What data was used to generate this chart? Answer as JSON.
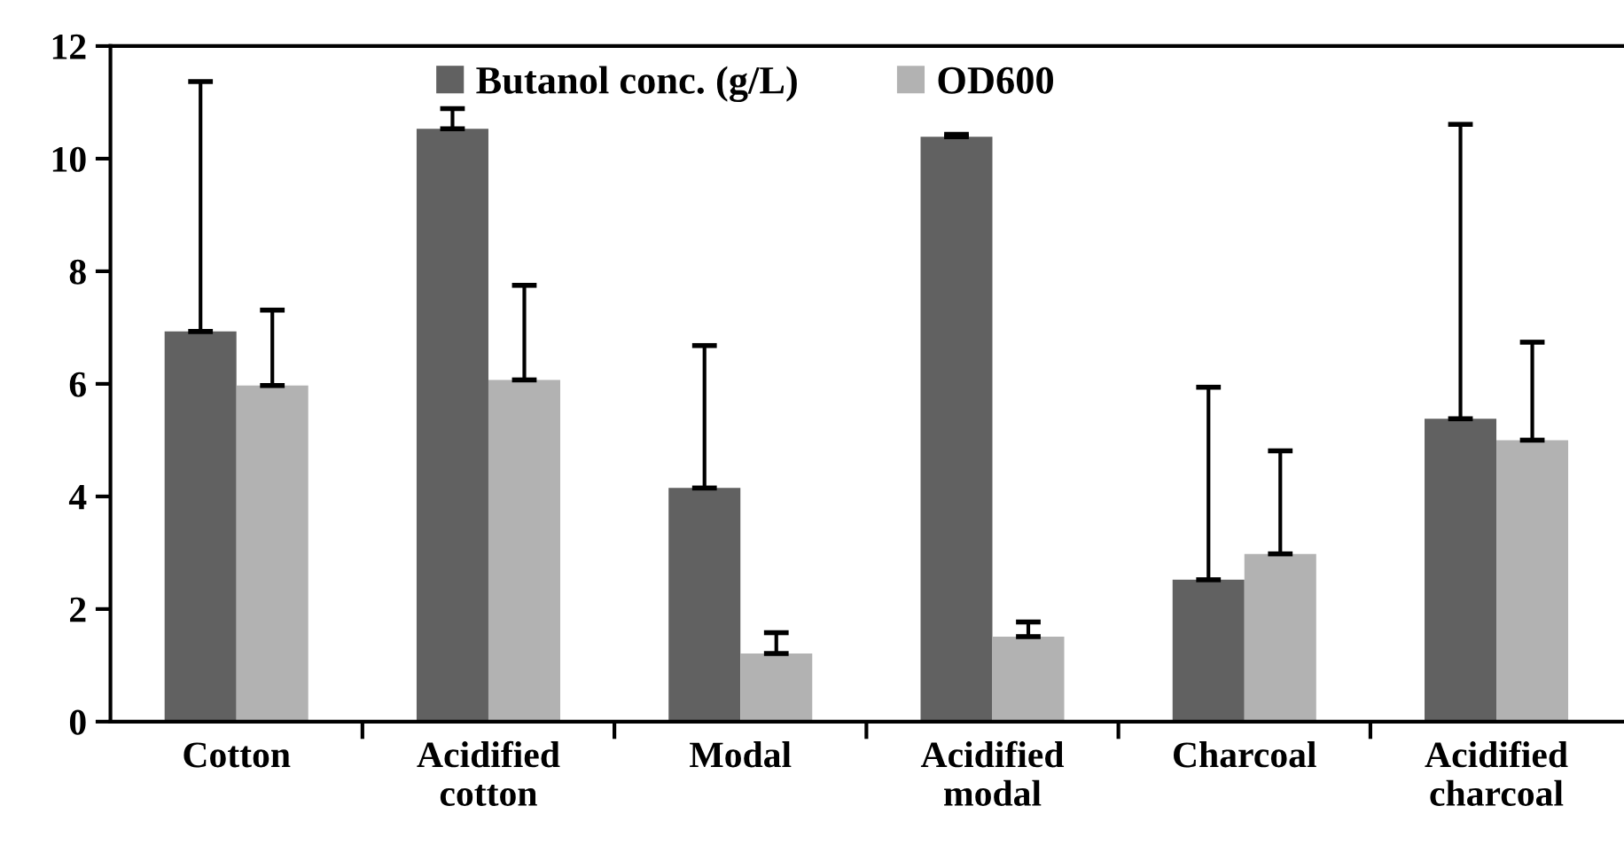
{
  "chart_data": {
    "type": "bar",
    "categories": [
      "Cotton",
      "Acidified\ncotton",
      "Modal",
      "Acidified\nmodal",
      "Charcoal",
      "Acidified\ncharcoal"
    ],
    "series": [
      {
        "name": "Butanol conc. (g/L)",
        "color": "#616161",
        "values": [
          6.93,
          10.53,
          4.15,
          10.39,
          2.52,
          5.38
        ],
        "errors": [
          [
            6.93,
            11.37
          ],
          [
            10.53,
            10.89
          ],
          [
            4.15,
            6.68
          ],
          [
            10.39,
            10.43
          ],
          [
            2.52,
            5.94
          ],
          [
            5.38,
            10.61
          ]
        ]
      },
      {
        "name": "OD600",
        "color": "#b2b2b2",
        "values": [
          5.97,
          6.07,
          1.21,
          1.51,
          2.98,
          5.0
        ],
        "errors": [
          [
            5.97,
            7.31
          ],
          [
            6.07,
            7.75
          ],
          [
            1.21,
            1.58
          ],
          [
            1.51,
            1.77
          ],
          [
            2.98,
            4.81
          ],
          [
            5.0,
            6.74
          ]
        ]
      }
    ],
    "ylim": [
      0,
      12
    ],
    "yticks": [
      0,
      2,
      4,
      6,
      8,
      10,
      12
    ],
    "grid": false,
    "legend": "top"
  }
}
